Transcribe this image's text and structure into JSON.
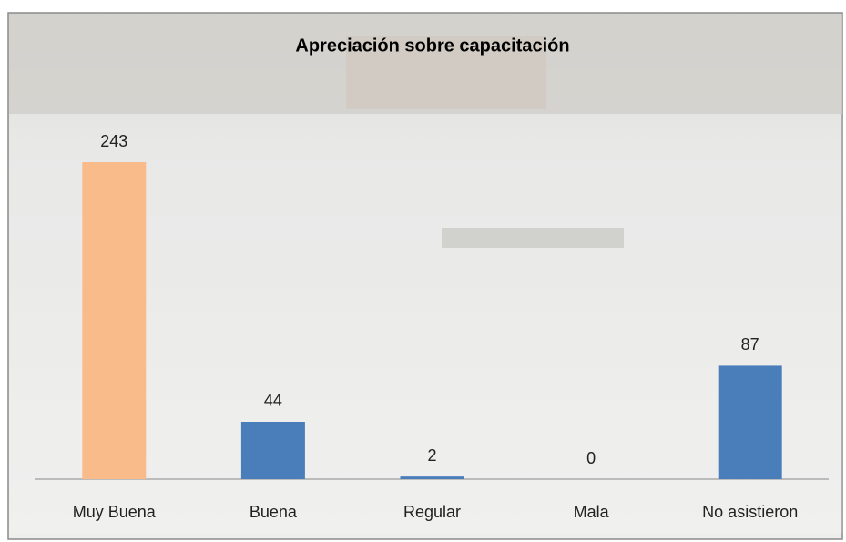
{
  "chart_data": {
    "type": "bar",
    "title": "Apreciación sobre capacitación",
    "categories": [
      "Muy Buena",
      "Buena",
      "Regular",
      "Mala",
      "No asistieron"
    ],
    "values": [
      243,
      44,
      2,
      0,
      87
    ],
    "colors": [
      "#f9bb8a",
      "#4a7ebb",
      "#4a7ebb",
      "#4a7ebb",
      "#4a7ebb"
    ],
    "ylim": [
      0,
      250
    ]
  }
}
